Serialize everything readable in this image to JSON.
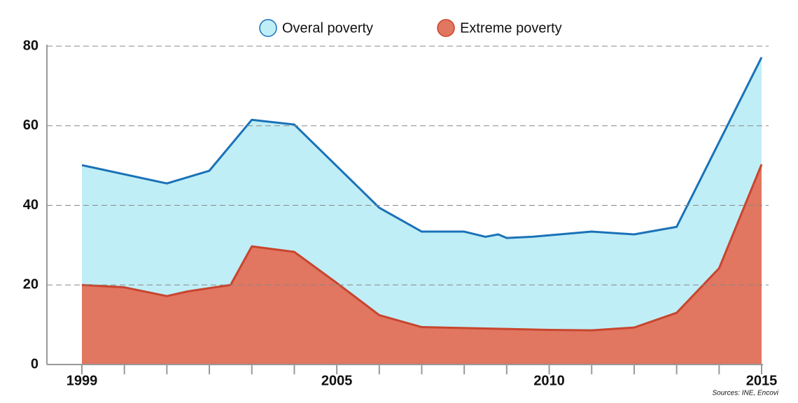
{
  "chart_data": {
    "type": "area",
    "series": [
      {
        "name": "Overal poverty",
        "color": "#1a72b8",
        "fill": "#c0eef6",
        "x": [
          1999,
          2001,
          2002,
          2003,
          2004,
          2006,
          2007,
          2008,
          2008.5,
          2008.8,
          2009,
          2009.6,
          2011,
          2012,
          2013,
          2015
        ],
        "values": [
          50.1,
          45.5,
          48.7,
          61.5,
          60.3,
          39.4,
          33.4,
          33.4,
          32.1,
          32.7,
          31.8,
          32.1,
          33.4,
          32.7,
          34.6,
          77.2
        ]
      },
      {
        "name": "Extreme poverty",
        "color": "#c8452e",
        "fill": "#e17661",
        "x": [
          1999,
          2000,
          2001,
          2001.5,
          2002.5,
          2003,
          2004,
          2005,
          2006,
          2007,
          2010,
          2011,
          2012,
          2013,
          2014,
          2015
        ],
        "values": [
          20,
          19.4,
          17.2,
          18.4,
          20,
          29.7,
          28.3,
          20.5,
          12.4,
          9.4,
          8.7,
          8.6,
          9.3,
          13,
          24.2,
          50.3
        ]
      }
    ],
    "xlim": [
      1999,
      2015
    ],
    "xticks": [
      1999,
      2005,
      2010,
      2015
    ],
    "minor_xticks": [
      2000,
      2001,
      2002,
      2003,
      2004,
      2006,
      2007,
      2008,
      2009,
      2011,
      2012,
      2013,
      2014
    ],
    "ylim": [
      0,
      80
    ],
    "yticks": [
      0,
      20,
      40,
      60,
      80
    ],
    "grid": true,
    "legend": "top",
    "source": "Sources: INE, Encovi"
  }
}
